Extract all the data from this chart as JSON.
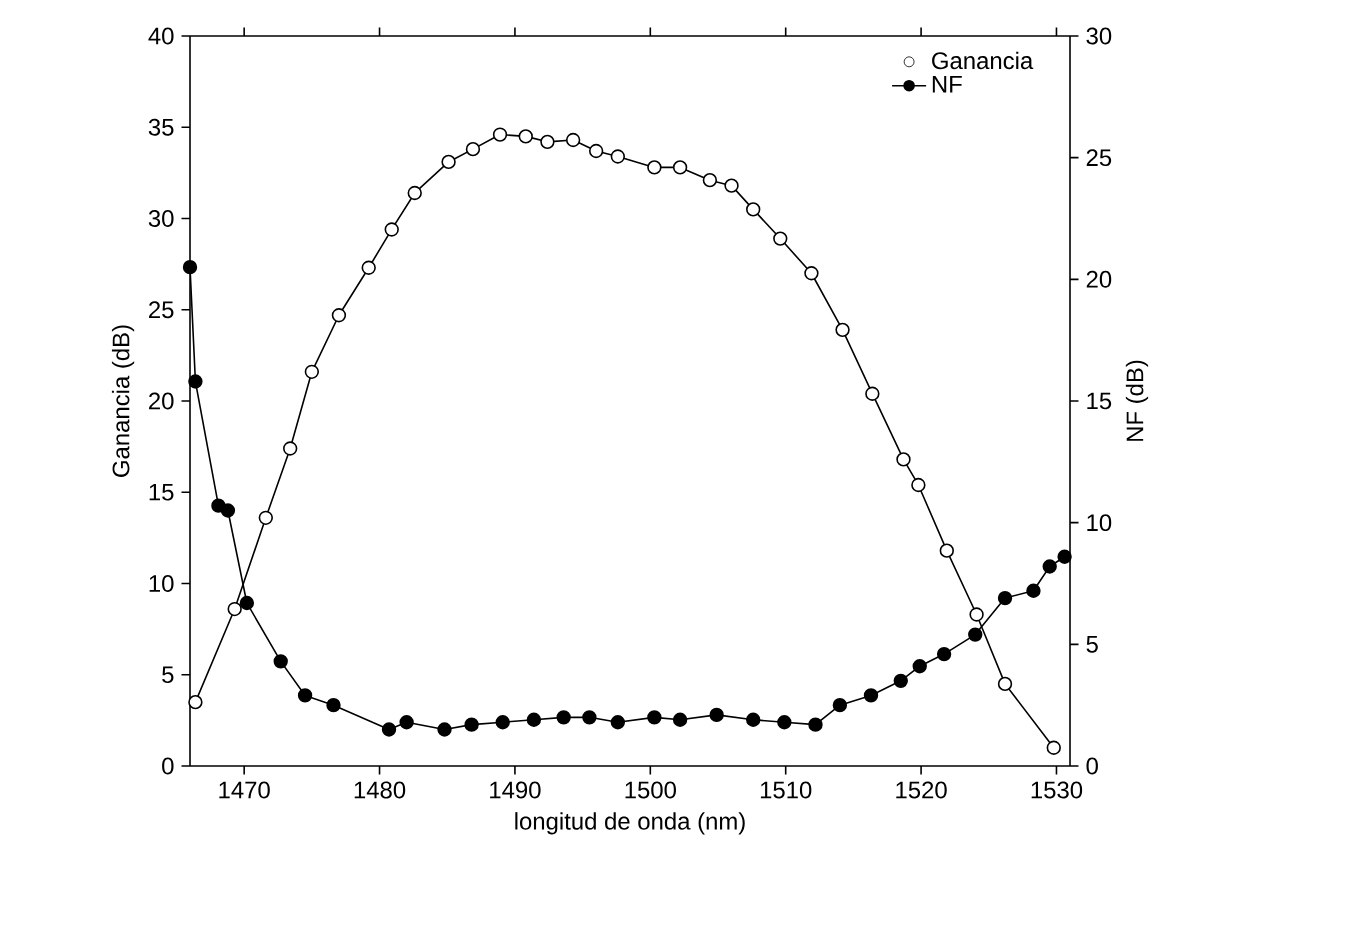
{
  "chart_data": {
    "type": "line",
    "xlabel": "longitud de onda  (nm)",
    "ylabel": "Ganancia (dB)",
    "y2label": "NF (dB)",
    "xlim": [
      1466,
      1531
    ],
    "xticks": [
      1470,
      1480,
      1490,
      1500,
      1510,
      1520,
      1530
    ],
    "ylim": [
      0,
      40
    ],
    "yticks": [
      0,
      5,
      10,
      15,
      20,
      25,
      30,
      35,
      40
    ],
    "y2lim": [
      0,
      30
    ],
    "y2ticks": [
      0,
      5,
      10,
      15,
      20,
      25,
      30
    ],
    "marker": "circle",
    "legend": "top right",
    "grid": false,
    "series": [
      {
        "name": "Ganancia",
        "color": "#000000",
        "x": [
          1466.4,
          1469.3,
          1471.6,
          1473.4,
          1475,
          1477,
          1479.2,
          1480.9,
          1482.6,
          1485.1,
          1486.9,
          1488.9,
          1490.8,
          1492.4,
          1494.3,
          1496,
          1497.6,
          1500.3,
          1502.2,
          1504.4,
          1506,
          1507.6,
          1509.6,
          1511.9,
          1514.2,
          1516.4,
          1518.7,
          1519.8,
          1521.9,
          1524.1,
          1526.2,
          1529.8
        ],
        "values": [
          3.5,
          8.6,
          13.6,
          17.4,
          21.6,
          24.7,
          27.3,
          29.4,
          31.4,
          33.1,
          33.8,
          34.6,
          34.5,
          34.2,
          34.3,
          33.7,
          33.4,
          32.8,
          32.8,
          32.1,
          31.8,
          30.5,
          28.9,
          27,
          23.9,
          20.4,
          16.8,
          15.4,
          11.8,
          8.3,
          4.5,
          1
        ]
      },
      {
        "name": "NF",
        "color": "#000000",
        "axis": "y2",
        "x": [
          1466,
          1466.4,
          1468.1,
          1468.8,
          1470.2,
          1472.7,
          1474.5,
          1476.6,
          1480.7,
          1482,
          1484.8,
          1486.8,
          1489.1,
          1491.4,
          1493.6,
          1495.5,
          1497.6,
          1500.3,
          1502.2,
          1504.9,
          1507.6,
          1509.9,
          1512.2,
          1514,
          1516.3,
          1518.5,
          1519.9,
          1521.7,
          1524,
          1526.2,
          1528.3,
          1529.5,
          1530.6
        ],
        "values": [
          20.5,
          15.8,
          10.7,
          10.5,
          6.7,
          4.3,
          2.9,
          2.5,
          1.5,
          1.8,
          1.5,
          1.7,
          1.8,
          1.9,
          2,
          2,
          1.8,
          2,
          1.9,
          2.1,
          1.9,
          1.8,
          1.7,
          2.5,
          2.9,
          3.5,
          4.1,
          4.6,
          5.4,
          6.9,
          7.2,
          8.2,
          8.6
        ]
      }
    ]
  }
}
